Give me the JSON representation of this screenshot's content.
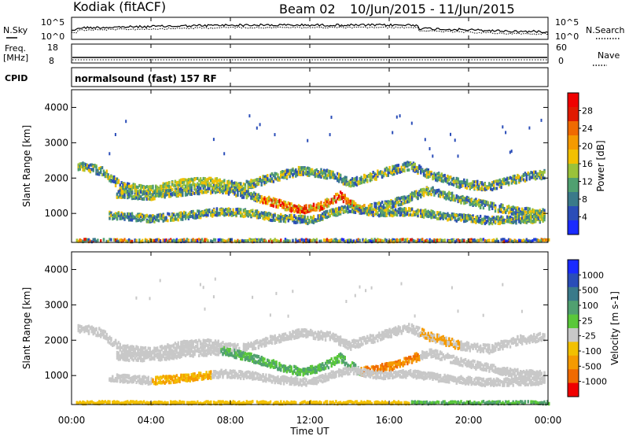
{
  "header": {
    "station": "Kodiak (fitACF)",
    "beam": "Beam 02",
    "date_range": "10/Jun/2015 - 11/Jun/2015"
  },
  "side_labels": {
    "nsky": "N.Sky",
    "freq": "Freq.",
    "freq_unit": "[MHz]",
    "cpid": "CPID",
    "nsearch": "N.Search",
    "nave": "Nave"
  },
  "cpid_text": "normalsound (fast) 157 RF",
  "colors": {
    "power": [
      "#1a2bff",
      "#2a4db8",
      "#3a7a8a",
      "#50a070",
      "#9ac23a",
      "#f2c000",
      "#f59a00",
      "#f06a00",
      "#e01a00",
      "#f00000"
    ],
    "velocity": [
      "#1a2bff",
      "#2a4db8",
      "#3a7a8a",
      "#50a070",
      "#5ac83a",
      "#c8c8c8",
      "#f2c000",
      "#f59a00",
      "#f06a00",
      "#f00000"
    ]
  },
  "chart_data": [
    {
      "type": "line",
      "name": "noise-panel",
      "left_ticks": [
        "10^5",
        "10^0"
      ],
      "right_ticks": [
        "10^5",
        "10^0"
      ]
    },
    {
      "type": "line",
      "name": "freq-nave-panel",
      "left_ticks": [
        "18",
        "8"
      ],
      "right_ticks": [
        "60",
        "0"
      ]
    },
    {
      "type": "heatmap",
      "name": "power",
      "ylabel": "Slant Range [km]",
      "ylim": [
        180,
        4500
      ],
      "y_ticks": [
        1000,
        2000,
        3000,
        4000
      ],
      "colorbar_label": "Power [dB]",
      "colorbar_ticks": [
        "4",
        "8",
        "12",
        "16",
        "20",
        "24",
        "28"
      ]
    },
    {
      "type": "heatmap",
      "name": "velocity",
      "ylabel": "Slant Range [km]",
      "ylim": [
        180,
        4500
      ],
      "y_ticks": [
        1000,
        2000,
        3000,
        4000
      ],
      "colorbar_label": "Velocity [m s-1]",
      "colorbar_ticks": [
        "1000",
        "500",
        "100",
        "25",
        "-25",
        "-100",
        "-500",
        "-1000"
      ]
    }
  ],
  "x_axis": {
    "ticks": [
      "00:00",
      "04:00",
      "08:00",
      "12:00",
      "16:00",
      "20:00",
      "00:00"
    ],
    "xlabel": "Time UT"
  }
}
